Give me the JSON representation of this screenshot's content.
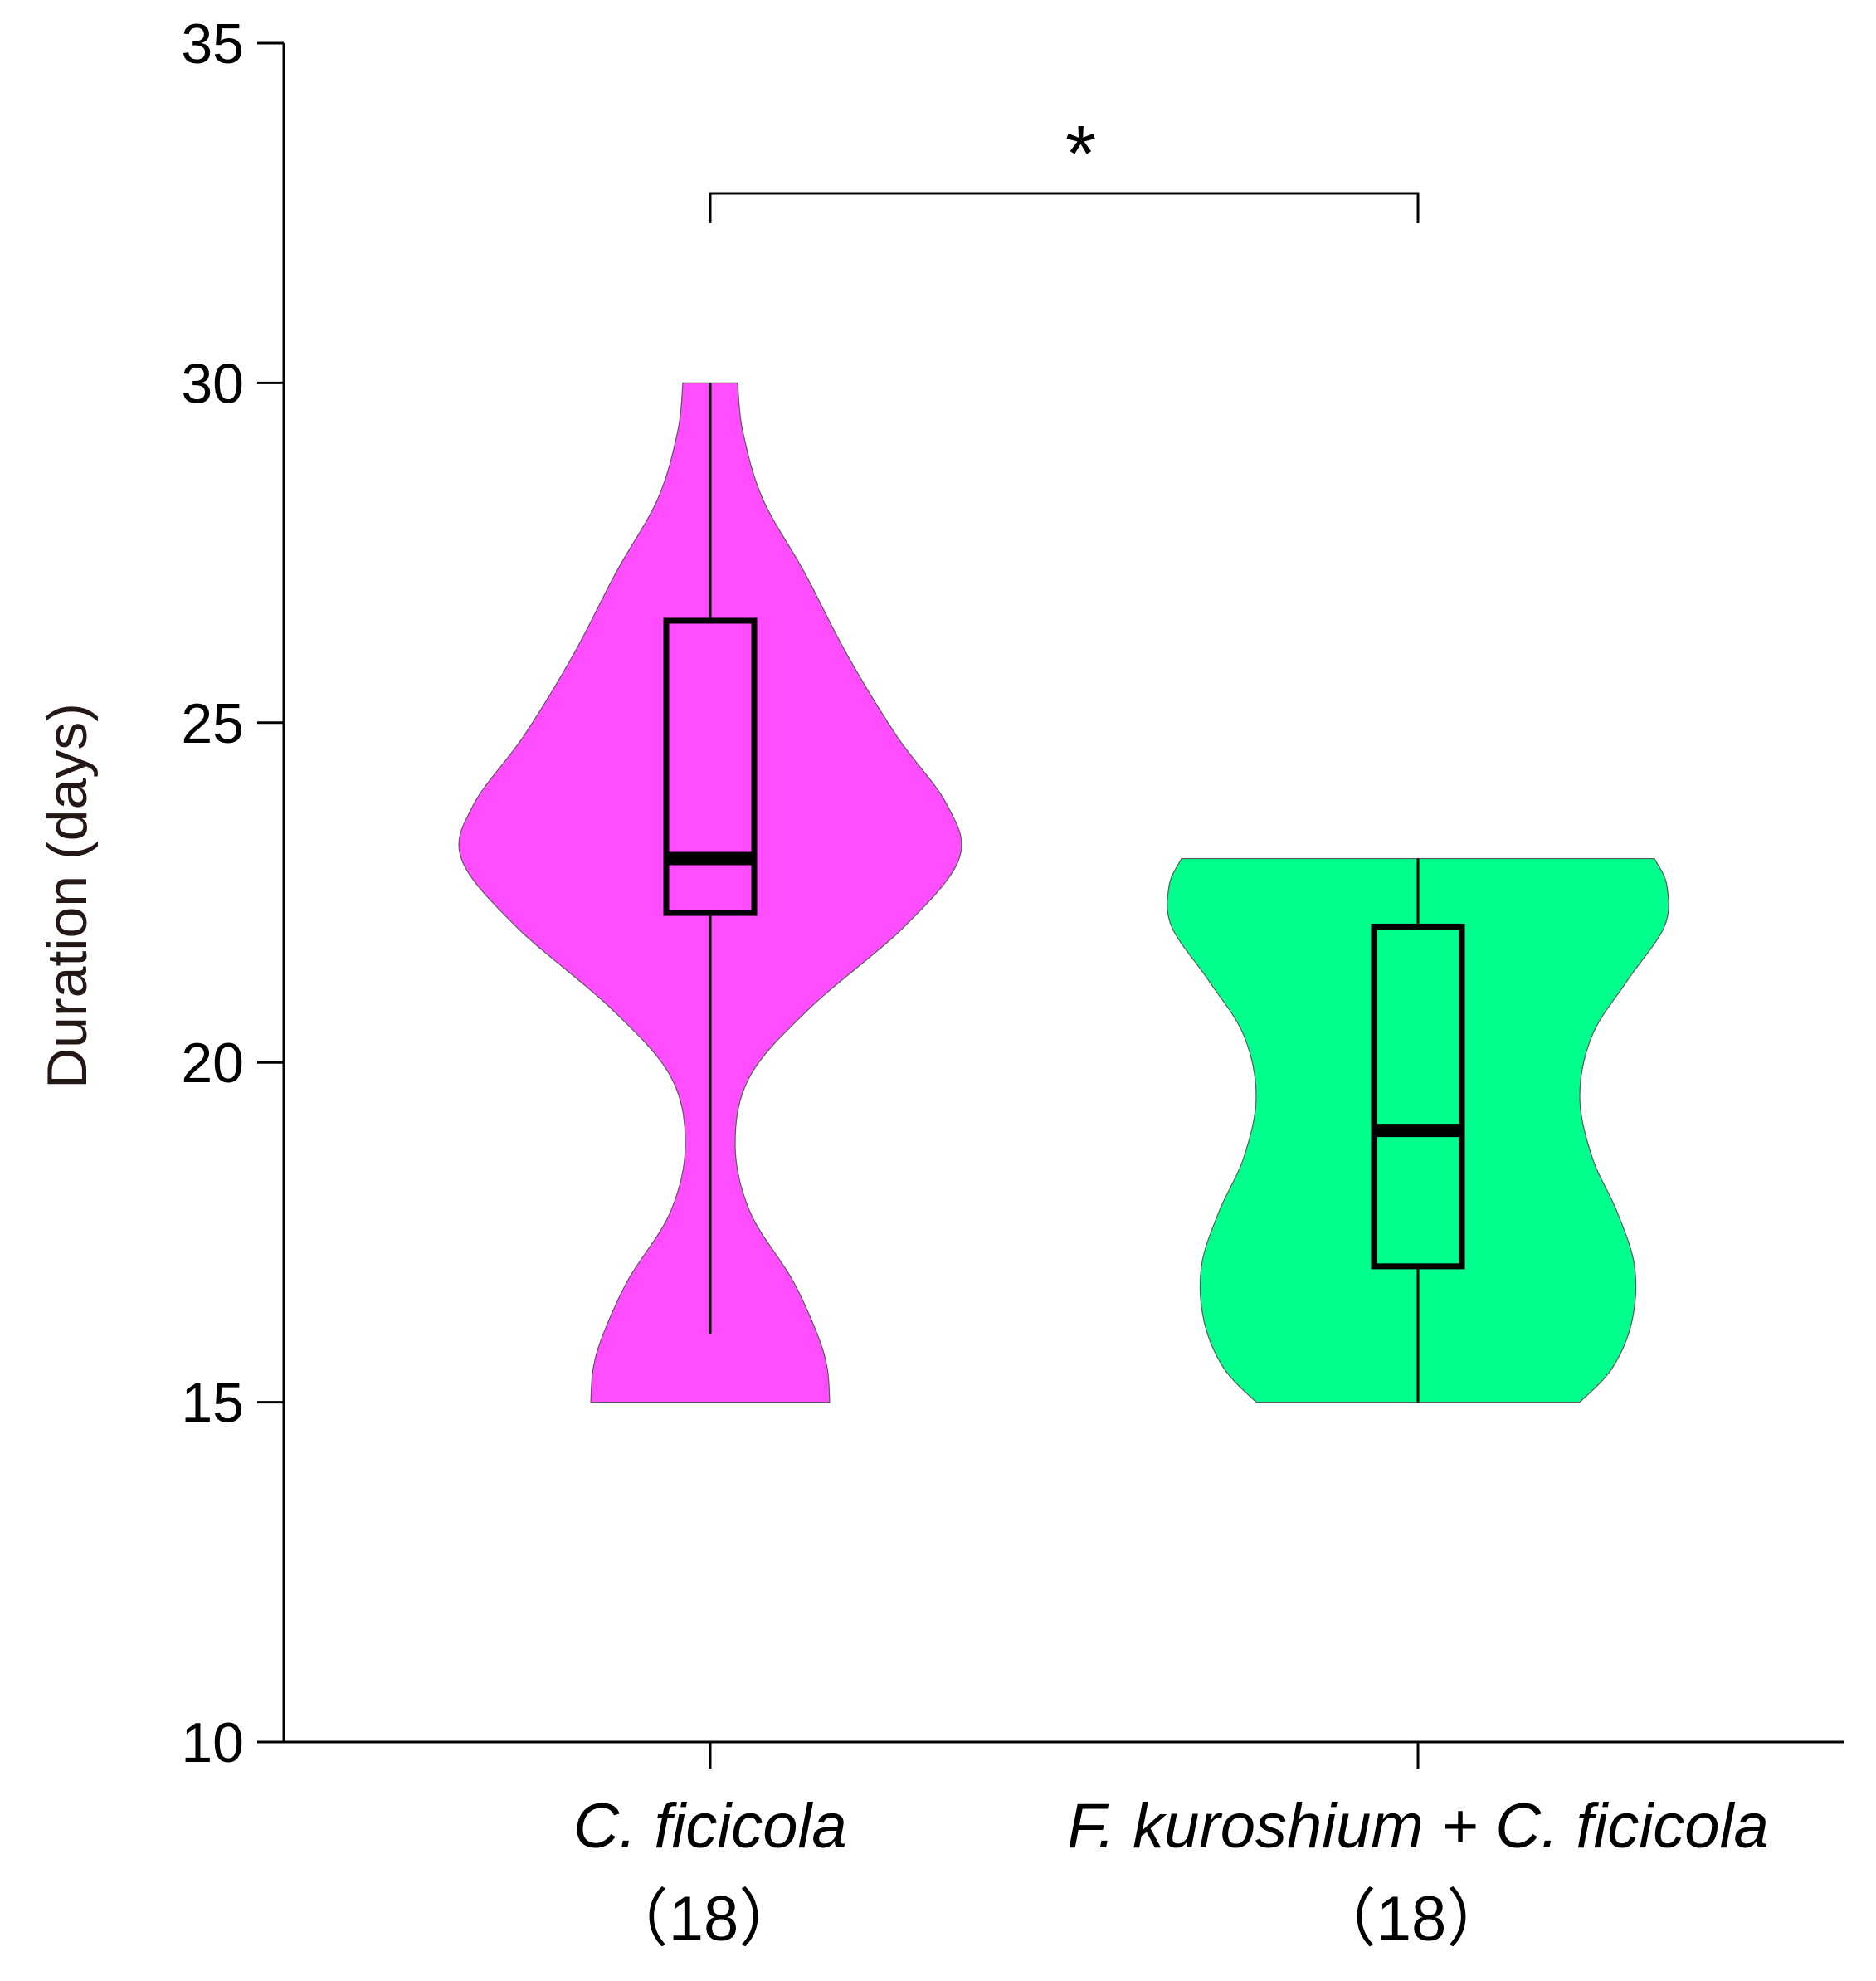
{
  "chart_data": {
    "type": "violin",
    "ylabel": "Duration (days)",
    "ylim": [
      10,
      35
    ],
    "yticks": [
      10,
      15,
      20,
      25,
      30,
      35
    ],
    "yticks_labels": [
      "10",
      "15",
      "20",
      "25",
      "30",
      "35"
    ],
    "grid": false,
    "groups": [
      {
        "label": "C. ficicola",
        "n_label": "（18）",
        "color": "#ff4dff",
        "min": 15,
        "max": 30,
        "whisker_low": 16,
        "whisker_high": 30,
        "q1": 22.2,
        "median": 23,
        "q3": 26.5,
        "density": [
          {
            "y": 15,
            "w": 0.48
          },
          {
            "y": 15.5,
            "w": 0.47
          },
          {
            "y": 16,
            "w": 0.43
          },
          {
            "y": 16.8,
            "w": 0.33
          },
          {
            "y": 17.8,
            "w": 0.16
          },
          {
            "y": 18.8,
            "w": 0.1
          },
          {
            "y": 19.8,
            "w": 0.16
          },
          {
            "y": 20.8,
            "w": 0.4
          },
          {
            "y": 22,
            "w": 0.78
          },
          {
            "y": 23,
            "w": 1.0
          },
          {
            "y": 23.8,
            "w": 0.95
          },
          {
            "y": 24.8,
            "w": 0.75
          },
          {
            "y": 26,
            "w": 0.55
          },
          {
            "y": 27.2,
            "w": 0.38
          },
          {
            "y": 28.3,
            "w": 0.21
          },
          {
            "y": 29.3,
            "w": 0.13
          },
          {
            "y": 30,
            "w": 0.11
          }
        ]
      },
      {
        "label": "F. kuroshium + C. ficicola",
        "n_label": "（18）",
        "color": "#00ff8c",
        "min": 15,
        "max": 23,
        "whisker_low": 15,
        "whisker_high": 23,
        "q1": 17,
        "median": 19,
        "q3": 22,
        "density": [
          {
            "y": 15,
            "w": 0.65
          },
          {
            "y": 15.5,
            "w": 0.78
          },
          {
            "y": 16.2,
            "w": 0.86
          },
          {
            "y": 17,
            "w": 0.87
          },
          {
            "y": 17.8,
            "w": 0.8
          },
          {
            "y": 18.6,
            "w": 0.7
          },
          {
            "y": 19.5,
            "w": 0.65
          },
          {
            "y": 20.4,
            "w": 0.7
          },
          {
            "y": 21.2,
            "w": 0.84
          },
          {
            "y": 22,
            "w": 0.99
          },
          {
            "y": 22.6,
            "w": 1.0
          },
          {
            "y": 23,
            "w": 0.95
          }
        ]
      }
    ],
    "comparisons": [
      {
        "groups": [
          0,
          1
        ],
        "label": "*"
      }
    ]
  }
}
